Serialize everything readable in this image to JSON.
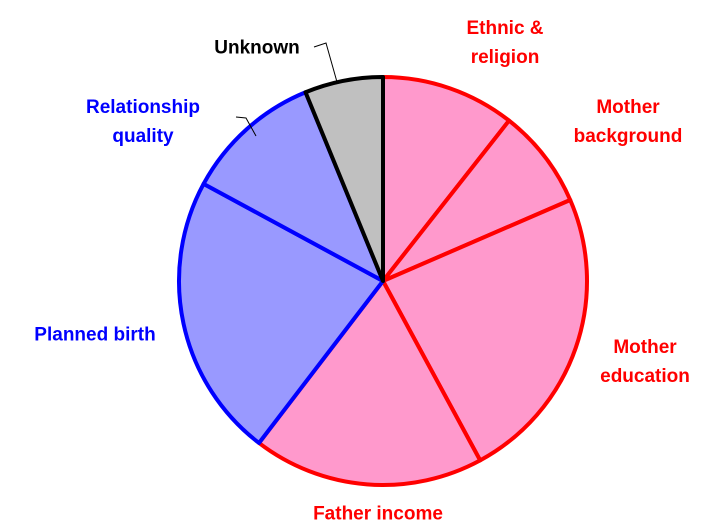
{
  "chart_data": {
    "type": "pie",
    "labels": [
      "Ethnic & religion",
      "Mother background",
      "Mother education",
      "Father income",
      "Planned birth",
      "Relationship quality",
      "Unknown"
    ],
    "values": [
      10.6,
      7.9,
      23.6,
      18.3,
      22.5,
      10.9,
      6.2
    ],
    "colors": [
      "#ff99cc",
      "#ff99cc",
      "#ff99cc",
      "#ff99cc",
      "#9999ff",
      "#9999ff",
      "#c0c0c0"
    ],
    "edge_colors": [
      "#ff0000",
      "#ff0000",
      "#ff0000",
      "#ff0000",
      "#0000ff",
      "#0000ff",
      "#000000"
    ]
  }
}
